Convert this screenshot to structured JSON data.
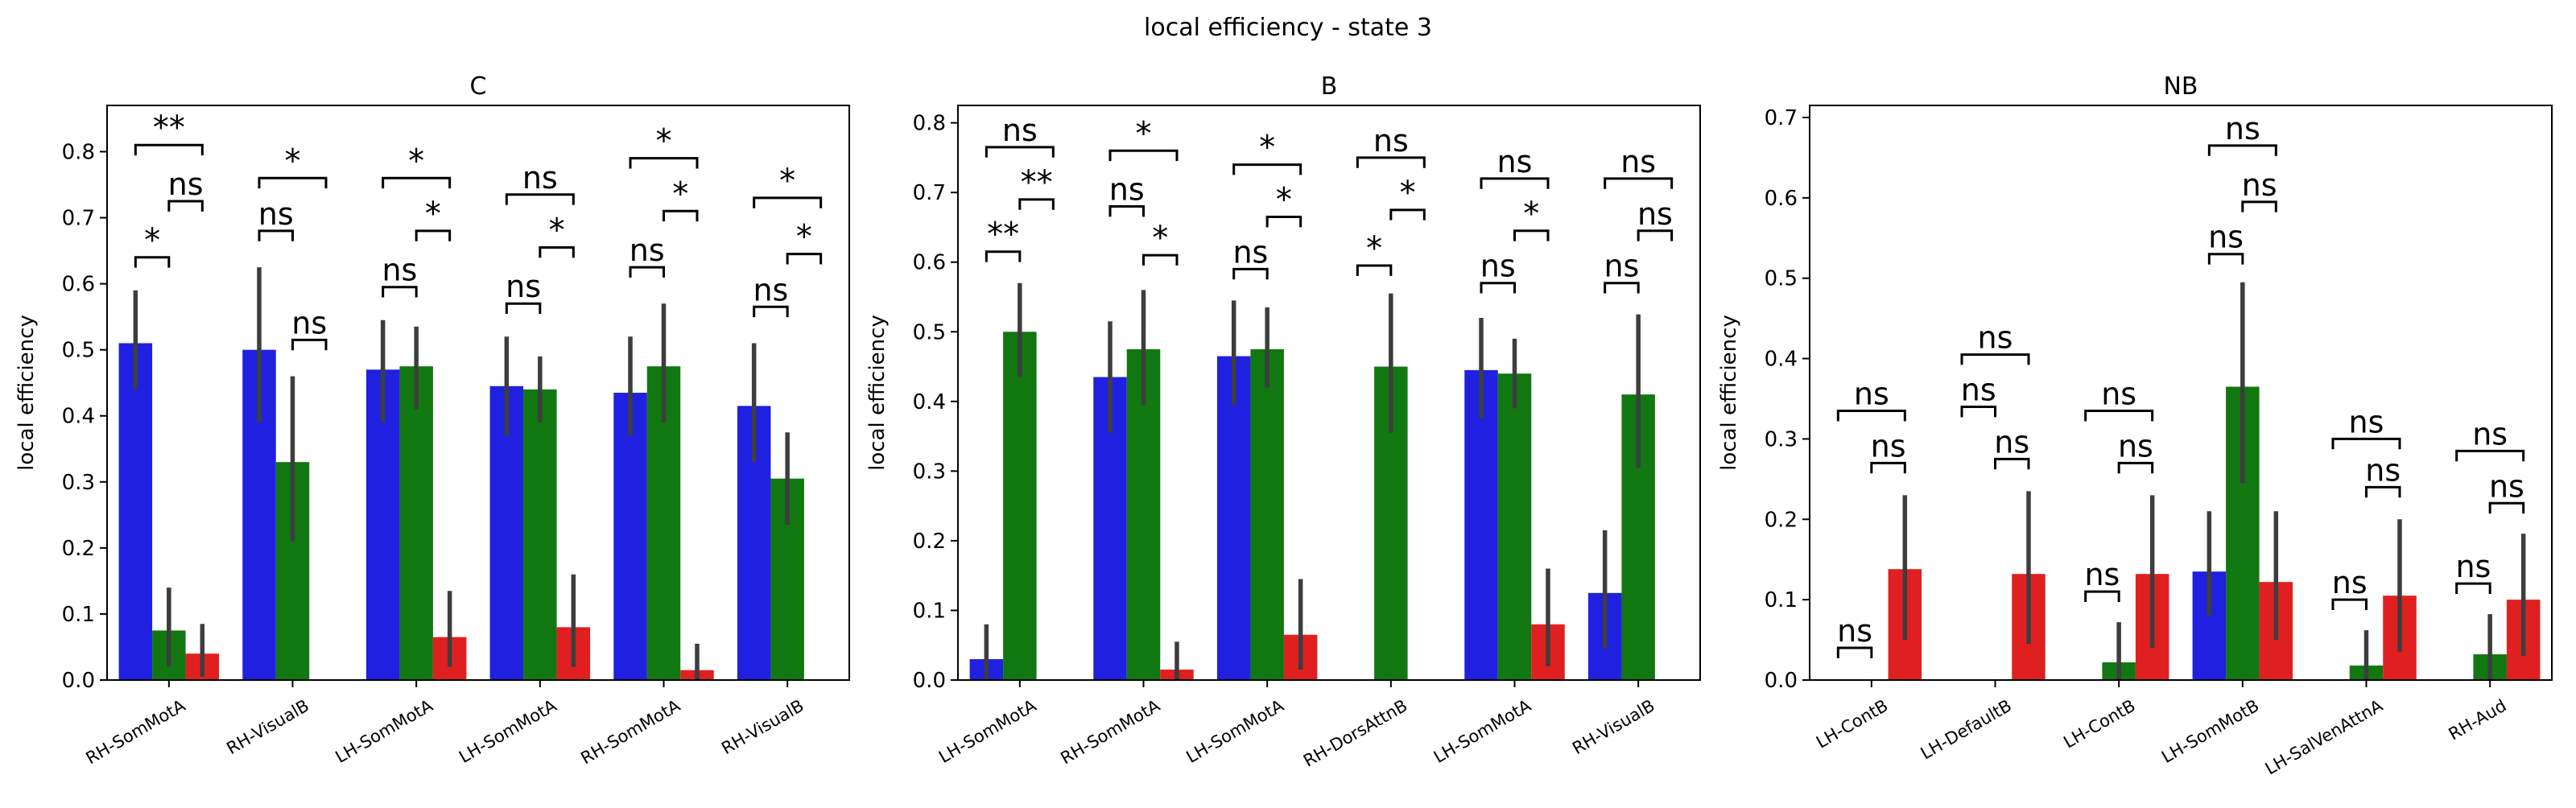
{
  "figure": {
    "title": "local efficiency - state 3"
  },
  "colors": {
    "blue": "#2020e0",
    "green": "#117711",
    "red": "#e02020",
    "errbar": "#3d3d3d"
  },
  "chart_data": [
    {
      "type": "bar",
      "title": "C",
      "ylabel": "local efficiency",
      "ylim": [
        0,
        0.87
      ],
      "yticks": [
        0.0,
        0.1,
        0.2,
        0.3,
        0.4,
        0.5,
        0.6,
        0.7,
        0.8
      ],
      "categories": [
        "RH-SomMotA",
        "RH-VisualB",
        "LH-SomMotA",
        "LH-SomMotA",
        "RH-SomMotA",
        "RH-VisualB"
      ],
      "series": [
        {
          "color": "blue",
          "values": [
            0.51,
            0.5,
            0.47,
            0.445,
            0.435,
            0.415
          ],
          "err_low": [
            0.44,
            0.39,
            0.39,
            0.37,
            0.37,
            0.33
          ],
          "err_high": [
            0.59,
            0.625,
            0.545,
            0.52,
            0.52,
            0.51
          ]
        },
        {
          "color": "green",
          "values": [
            0.075,
            0.33,
            0.475,
            0.44,
            0.475,
            0.305
          ],
          "err_low": [
            0.02,
            0.21,
            0.41,
            0.39,
            0.39,
            0.235
          ],
          "err_high": [
            0.14,
            0.46,
            0.535,
            0.49,
            0.57,
            0.375
          ]
        },
        {
          "color": "red",
          "values": [
            0.04,
            null,
            0.065,
            0.08,
            0.015,
            null
          ],
          "err_low": [
            0.005,
            null,
            0.02,
            0.02,
            0.0,
            null
          ],
          "err_high": [
            0.085,
            null,
            0.135,
            0.16,
            0.055,
            null
          ]
        }
      ],
      "annotations": [
        {
          "group": 0,
          "pair": [
            0,
            1
          ],
          "y": 0.64,
          "label": "*"
        },
        {
          "group": 0,
          "pair": [
            1,
            2
          ],
          "y": 0.725,
          "label": "ns"
        },
        {
          "group": 0,
          "pair": [
            0,
            2
          ],
          "y": 0.81,
          "label": "**"
        },
        {
          "group": 1,
          "pair": [
            0,
            1
          ],
          "y": 0.68,
          "label": "ns"
        },
        {
          "group": 1,
          "pair": [
            1,
            2
          ],
          "y": 0.515,
          "label": "ns"
        },
        {
          "group": 1,
          "pair": [
            0,
            2
          ],
          "y": 0.76,
          "label": "*"
        },
        {
          "group": 2,
          "pair": [
            0,
            1
          ],
          "y": 0.595,
          "label": "ns"
        },
        {
          "group": 2,
          "pair": [
            1,
            2
          ],
          "y": 0.68,
          "label": "*"
        },
        {
          "group": 2,
          "pair": [
            0,
            2
          ],
          "y": 0.76,
          "label": "*"
        },
        {
          "group": 3,
          "pair": [
            0,
            1
          ],
          "y": 0.57,
          "label": "ns"
        },
        {
          "group": 3,
          "pair": [
            1,
            2
          ],
          "y": 0.655,
          "label": "*"
        },
        {
          "group": 3,
          "pair": [
            0,
            2
          ],
          "y": 0.735,
          "label": "ns"
        },
        {
          "group": 4,
          "pair": [
            0,
            1
          ],
          "y": 0.625,
          "label": "ns"
        },
        {
          "group": 4,
          "pair": [
            1,
            2
          ],
          "y": 0.71,
          "label": "*"
        },
        {
          "group": 4,
          "pair": [
            0,
            2
          ],
          "y": 0.79,
          "label": "*"
        },
        {
          "group": 5,
          "pair": [
            0,
            1
          ],
          "y": 0.565,
          "label": "ns"
        },
        {
          "group": 5,
          "pair": [
            1,
            2
          ],
          "y": 0.645,
          "label": "*"
        },
        {
          "group": 5,
          "pair": [
            0,
            2
          ],
          "y": 0.73,
          "label": "*"
        }
      ]
    },
    {
      "type": "bar",
      "title": "B",
      "ylabel": "local efficiency",
      "ylim": [
        0,
        0.825
      ],
      "yticks": [
        0.0,
        0.1,
        0.2,
        0.3,
        0.4,
        0.5,
        0.6,
        0.7,
        0.8
      ],
      "categories": [
        "LH-SomMotA",
        "RH-SomMotA",
        "LH-SomMotA",
        "RH-DorsAttnB",
        "LH-SomMotA",
        "RH-VisualB"
      ],
      "series": [
        {
          "color": "blue",
          "values": [
            0.03,
            0.435,
            0.465,
            null,
            0.445,
            0.125
          ],
          "err_low": [
            0.0,
            0.355,
            0.395,
            null,
            0.375,
            0.045
          ],
          "err_high": [
            0.08,
            0.515,
            0.545,
            null,
            0.52,
            0.215
          ]
        },
        {
          "color": "green",
          "values": [
            0.5,
            0.475,
            0.475,
            0.45,
            0.44,
            0.41
          ],
          "err_low": [
            0.435,
            0.395,
            0.42,
            0.355,
            0.39,
            0.305
          ],
          "err_high": [
            0.57,
            0.56,
            0.535,
            0.555,
            0.49,
            0.525
          ]
        },
        {
          "color": "red",
          "values": [
            null,
            0.015,
            0.065,
            null,
            0.08,
            null
          ],
          "err_low": [
            null,
            0.0,
            0.015,
            null,
            0.02,
            null
          ],
          "err_high": [
            null,
            0.055,
            0.145,
            null,
            0.16,
            null
          ]
        }
      ],
      "annotations": [
        {
          "group": 0,
          "pair": [
            0,
            1
          ],
          "y": 0.615,
          "label": "**"
        },
        {
          "group": 0,
          "pair": [
            1,
            2
          ],
          "y": 0.69,
          "label": "**"
        },
        {
          "group": 0,
          "pair": [
            0,
            2
          ],
          "y": 0.765,
          "label": "ns"
        },
        {
          "group": 1,
          "pair": [
            0,
            1
          ],
          "y": 0.68,
          "label": "ns"
        },
        {
          "group": 1,
          "pair": [
            1,
            2
          ],
          "y": 0.61,
          "label": "*"
        },
        {
          "group": 1,
          "pair": [
            0,
            2
          ],
          "y": 0.76,
          "label": "*"
        },
        {
          "group": 2,
          "pair": [
            0,
            1
          ],
          "y": 0.59,
          "label": "ns"
        },
        {
          "group": 2,
          "pair": [
            1,
            2
          ],
          "y": 0.665,
          "label": "*"
        },
        {
          "group": 2,
          "pair": [
            0,
            2
          ],
          "y": 0.74,
          "label": "*"
        },
        {
          "group": 3,
          "pair": [
            0,
            1
          ],
          "y": 0.595,
          "label": "*"
        },
        {
          "group": 3,
          "pair": [
            1,
            2
          ],
          "y": 0.675,
          "label": "*"
        },
        {
          "group": 3,
          "pair": [
            0,
            2
          ],
          "y": 0.75,
          "label": "ns"
        },
        {
          "group": 4,
          "pair": [
            0,
            1
          ],
          "y": 0.57,
          "label": "ns"
        },
        {
          "group": 4,
          "pair": [
            1,
            2
          ],
          "y": 0.645,
          "label": "*"
        },
        {
          "group": 4,
          "pair": [
            0,
            2
          ],
          "y": 0.72,
          "label": "ns"
        },
        {
          "group": 5,
          "pair": [
            0,
            1
          ],
          "y": 0.57,
          "label": "ns"
        },
        {
          "group": 5,
          "pair": [
            1,
            2
          ],
          "y": 0.645,
          "label": "ns"
        },
        {
          "group": 5,
          "pair": [
            0,
            2
          ],
          "y": 0.72,
          "label": "ns"
        }
      ]
    },
    {
      "type": "bar",
      "title": "NB",
      "ylabel": "local efficiency",
      "ylim": [
        0,
        0.715
      ],
      "yticks": [
        0.0,
        0.1,
        0.2,
        0.3,
        0.4,
        0.5,
        0.6,
        0.7
      ],
      "categories": [
        "LH-ContB",
        "LH-DefaultB",
        "LH-ContB",
        "LH-SomMotB",
        "LH-SalVenAttnA",
        "RH-Aud"
      ],
      "series": [
        {
          "color": "blue",
          "values": [
            null,
            null,
            null,
            0.135,
            null,
            null
          ],
          "err_low": [
            null,
            null,
            null,
            0.08,
            null,
            null
          ],
          "err_high": [
            null,
            null,
            null,
            0.21,
            null,
            null
          ]
        },
        {
          "color": "green",
          "values": [
            null,
            null,
            0.022,
            0.365,
            0.018,
            0.032
          ],
          "err_low": [
            null,
            null,
            0.0,
            0.245,
            0.0,
            0.0
          ],
          "err_high": [
            null,
            null,
            0.072,
            0.495,
            0.062,
            0.082
          ]
        },
        {
          "color": "red",
          "values": [
            0.138,
            0.132,
            0.132,
            0.122,
            0.105,
            0.1
          ],
          "err_low": [
            0.05,
            0.045,
            0.04,
            0.05,
            0.035,
            0.03
          ],
          "err_high": [
            0.23,
            0.235,
            0.23,
            0.21,
            0.2,
            0.182
          ]
        }
      ],
      "annotations": [
        {
          "group": 0,
          "pair": [
            0,
            1
          ],
          "y": 0.04,
          "label": "ns"
        },
        {
          "group": 0,
          "pair": [
            1,
            2
          ],
          "y": 0.27,
          "label": "ns"
        },
        {
          "group": 0,
          "pair": [
            0,
            2
          ],
          "y": 0.335,
          "label": "ns"
        },
        {
          "group": 1,
          "pair": [
            0,
            1
          ],
          "y": 0.34,
          "label": "ns"
        },
        {
          "group": 1,
          "pair": [
            1,
            2
          ],
          "y": 0.275,
          "label": "ns"
        },
        {
          "group": 1,
          "pair": [
            0,
            2
          ],
          "y": 0.405,
          "label": "ns"
        },
        {
          "group": 2,
          "pair": [
            0,
            1
          ],
          "y": 0.11,
          "label": "ns"
        },
        {
          "group": 2,
          "pair": [
            1,
            2
          ],
          "y": 0.27,
          "label": "ns"
        },
        {
          "group": 2,
          "pair": [
            0,
            2
          ],
          "y": 0.335,
          "label": "ns"
        },
        {
          "group": 3,
          "pair": [
            0,
            1
          ],
          "y": 0.53,
          "label": "ns"
        },
        {
          "group": 3,
          "pair": [
            1,
            2
          ],
          "y": 0.595,
          "label": "ns"
        },
        {
          "group": 3,
          "pair": [
            0,
            2
          ],
          "y": 0.665,
          "label": "ns"
        },
        {
          "group": 4,
          "pair": [
            0,
            1
          ],
          "y": 0.1,
          "label": "ns"
        },
        {
          "group": 4,
          "pair": [
            1,
            2
          ],
          "y": 0.24,
          "label": "ns"
        },
        {
          "group": 4,
          "pair": [
            0,
            2
          ],
          "y": 0.3,
          "label": "ns"
        },
        {
          "group": 5,
          "pair": [
            0,
            1
          ],
          "y": 0.12,
          "label": "ns"
        },
        {
          "group": 5,
          "pair": [
            1,
            2
          ],
          "y": 0.22,
          "label": "ns"
        },
        {
          "group": 5,
          "pair": [
            0,
            2
          ],
          "y": 0.285,
          "label": "ns"
        }
      ]
    }
  ]
}
